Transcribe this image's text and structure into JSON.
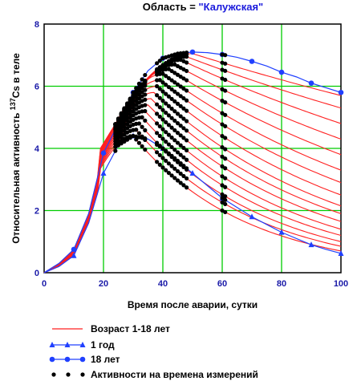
{
  "title": {
    "prefix": "Область = ",
    "value": "\"Калужская\"",
    "value_color": "#1a1adc"
  },
  "chart_data": {
    "type": "line",
    "xlabel": "Время после аварии, сутки",
    "ylabel_prefix": "Относительная активность ",
    "ylabel_isotope_mass": "137",
    "ylabel_isotope_symbol": "Cs",
    "ylabel_suffix": " в теле",
    "xlim": [
      0,
      100
    ],
    "ylim": [
      0,
      8
    ],
    "x_ticks": [
      0,
      20,
      40,
      60,
      80,
      100
    ],
    "y_ticks": [
      0,
      2,
      4,
      6,
      8
    ],
    "x_tick_labels": [
      "0",
      "20",
      "40",
      "60",
      "80",
      "100"
    ],
    "y_tick_labels": [
      "0",
      "2",
      "4",
      "6",
      "8"
    ],
    "grid": true,
    "grid_color": "#00cc00",
    "legend_position": "bottom",
    "colors": {
      "ages": "#ff2020",
      "one_year": "#2040ff",
      "eighteen": "#2040ff",
      "measurements": "#000000"
    },
    "series": [
      {
        "name": "Возраст 1-18 лет",
        "style": "line",
        "peaks": [
          4.4,
          4.6,
          4.8,
          5.0,
          5.2,
          5.4,
          5.6,
          5.8,
          6.0,
          6.2,
          6.4,
          6.55,
          6.7,
          6.85,
          6.95,
          7.05
        ],
        "peak_days": [
          30,
          31,
          32,
          33,
          34,
          35,
          36,
          37,
          38,
          39,
          40,
          42,
          44,
          46,
          48,
          50
        ],
        "end_values": [
          0.7,
          0.85,
          1.0,
          1.2,
          1.4,
          1.65,
          1.9,
          2.15,
          2.5,
          2.9,
          3.3,
          3.8,
          4.3,
          4.8,
          5.3,
          5.7
        ]
      },
      {
        "name": "1 год",
        "style": "line-triangle",
        "x": [
          0,
          5,
          10,
          15,
          20,
          25,
          30,
          35,
          40,
          45,
          50,
          55,
          60,
          65,
          70,
          75,
          80,
          85,
          90,
          95,
          100
        ],
        "y": [
          0,
          0.2,
          0.55,
          1.6,
          3.2,
          4.1,
          4.4,
          4.3,
          4.0,
          3.6,
          3.2,
          2.8,
          2.4,
          2.1,
          1.8,
          1.55,
          1.3,
          1.1,
          0.9,
          0.75,
          0.62
        ]
      },
      {
        "name": "18 лет",
        "style": "line-circle",
        "x": [
          0,
          5,
          10,
          15,
          20,
          25,
          30,
          35,
          40,
          45,
          50,
          55,
          60,
          65,
          70,
          75,
          80,
          85,
          90,
          95,
          100
        ],
        "y": [
          0,
          0.3,
          0.75,
          1.9,
          3.85,
          4.8,
          5.8,
          6.5,
          6.9,
          7.05,
          7.1,
          7.08,
          7.02,
          6.93,
          6.8,
          6.65,
          6.45,
          6.3,
          6.1,
          5.95,
          5.8
        ]
      },
      {
        "name": "Активности на времена измерений",
        "style": "points",
        "days": [
          24,
          25,
          26,
          27,
          28,
          29,
          30,
          31,
          32,
          33,
          34,
          38,
          39,
          40,
          41,
          42,
          43,
          44,
          45,
          46,
          47,
          48,
          60,
          61
        ]
      }
    ]
  }
}
